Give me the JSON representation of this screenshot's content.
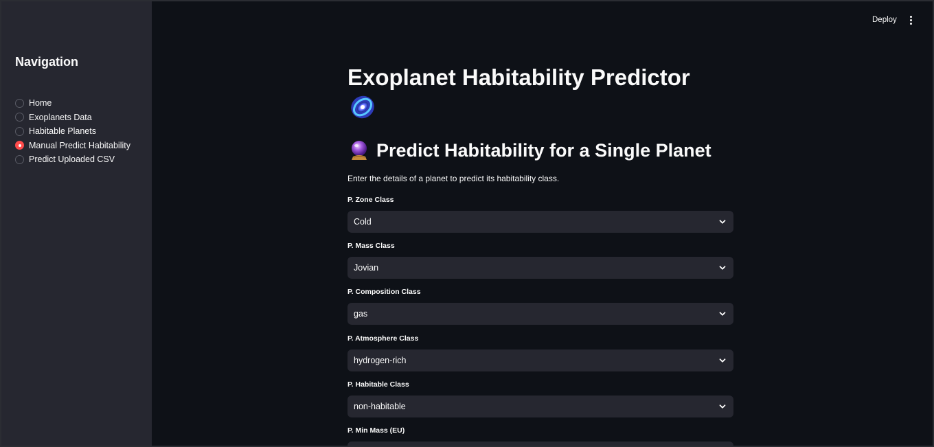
{
  "header": {
    "deploy_label": "Deploy",
    "menu_icon": "vertical-dots-icon"
  },
  "sidebar": {
    "title": "Navigation",
    "items": [
      {
        "label": "Home",
        "selected": false
      },
      {
        "label": "Exoplanets Data",
        "selected": false
      },
      {
        "label": "Habitable Planets",
        "selected": false
      },
      {
        "label": "Manual Predict Habitability",
        "selected": true
      },
      {
        "label": "Predict Uploaded CSV",
        "selected": false
      }
    ]
  },
  "main": {
    "title": "Exoplanet Habitability Predictor",
    "title_icon": "galaxy-icon",
    "subtitle": "Predict Habitability for a Single Planet",
    "subtitle_icon": "crystal-ball-icon",
    "intro": "Enter the details of a planet to predict its habitability class.",
    "fields": [
      {
        "label": "P. Zone Class",
        "value": "Cold"
      },
      {
        "label": "P. Mass Class",
        "value": "Jovian"
      },
      {
        "label": "P. Composition Class",
        "value": "gas"
      },
      {
        "label": "P. Atmosphere Class",
        "value": "hydrogen-rich"
      },
      {
        "label": "P. Habitable Class",
        "value": "non-habitable"
      },
      {
        "label": "P. Min Mass (EU)",
        "value": ""
      }
    ]
  },
  "colors": {
    "accent": "#ff4b4b",
    "background": "#0e1117",
    "sidebar": "#262730",
    "input": "#262730",
    "text": "#fafafa"
  }
}
